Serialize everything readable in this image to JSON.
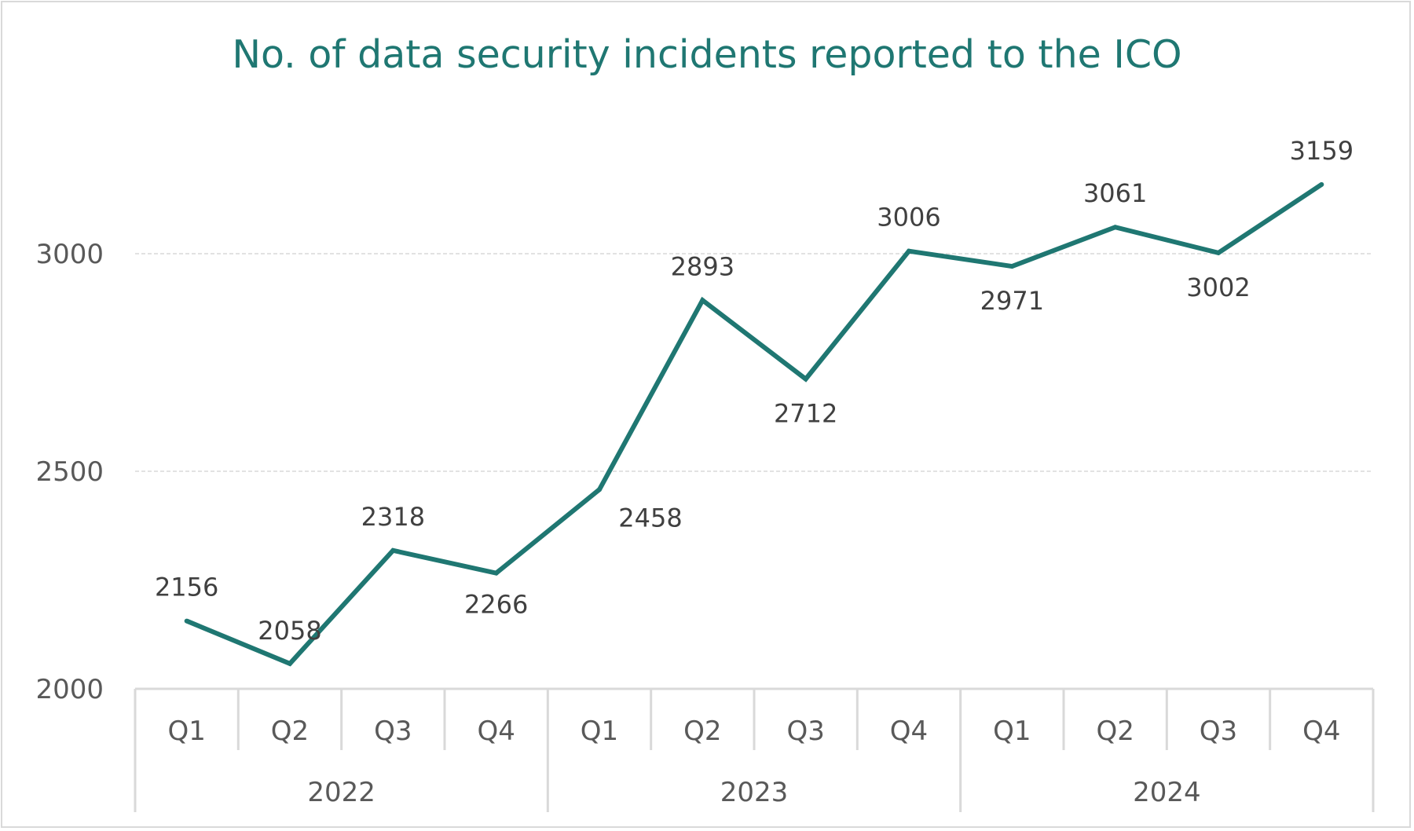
{
  "chart_data": {
    "type": "line",
    "title": "No. of data security incidents reported to the ICO",
    "categories": [
      "Q1",
      "Q2",
      "Q3",
      "Q4",
      "Q1",
      "Q2",
      "Q3",
      "Q4",
      "Q1",
      "Q2",
      "Q3",
      "Q4"
    ],
    "groups": [
      {
        "label": "2022",
        "span": 4
      },
      {
        "label": "2023",
        "span": 4
      },
      {
        "label": "2024",
        "span": 4
      }
    ],
    "series": [
      {
        "values": [
          2156,
          2058,
          2318,
          2266,
          2458,
          2893,
          2712,
          3006,
          2971,
          3061,
          3002,
          3159
        ]
      }
    ],
    "data_labels": [
      "2156",
      "2058",
      "2318",
      "2266",
      "2458",
      "2893",
      "2712",
      "3006",
      "2971",
      "3061",
      "3002",
      "3159"
    ],
    "y_ticks": [
      "2000",
      "2500",
      "3000"
    ],
    "ylim": [
      2000,
      3400
    ],
    "grid": true,
    "xlabel": "",
    "ylabel": "",
    "line_color": "#1f7772",
    "grid_color": "#d9d9d9"
  }
}
